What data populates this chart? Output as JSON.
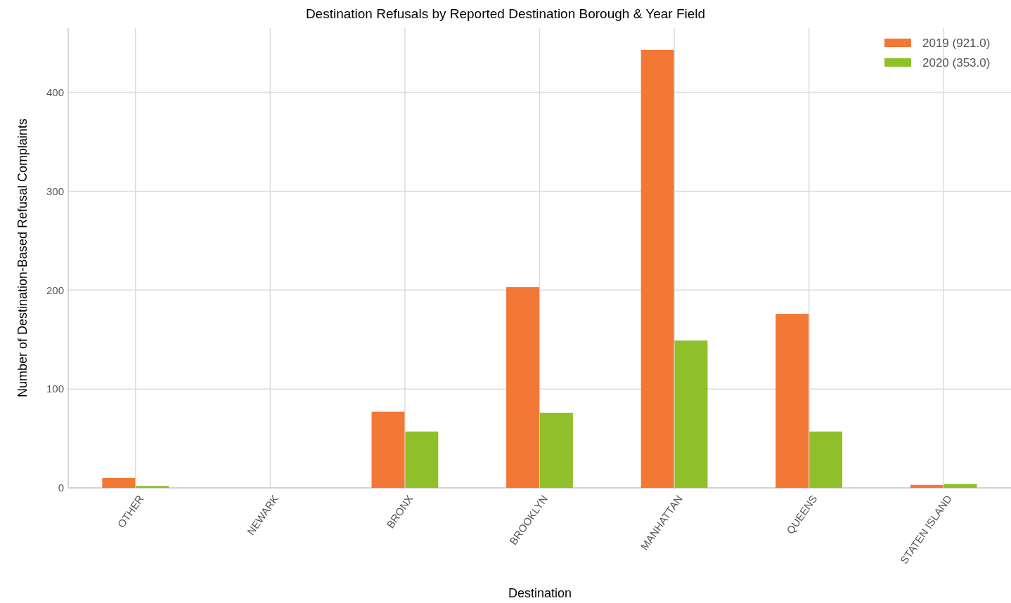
{
  "chart_data": {
    "type": "bar",
    "title": "Destination Refusals by Reported Destination Borough & Year Field",
    "xlabel": "Destination",
    "ylabel": "Number of Destination-Based Refusal Complaints",
    "categories": [
      "OTHER",
      "NEWARK",
      "BRONX",
      "BROOKLYN",
      "MANHATTAN",
      "QUEENS",
      "STATEN ISLAND"
    ],
    "series": [
      {
        "name": "2019 (921.0)",
        "color": "#f37735",
        "values": [
          10,
          0,
          77,
          203,
          443,
          176,
          3
        ]
      },
      {
        "name": "2020 (353.0)",
        "color": "#8fc02a",
        "values": [
          2,
          0,
          57,
          76,
          149,
          57,
          4
        ]
      }
    ],
    "ylim": [
      0,
      465
    ],
    "yticks": [
      0,
      100,
      200,
      300,
      400
    ],
    "grid": true,
    "legend": "top right"
  }
}
